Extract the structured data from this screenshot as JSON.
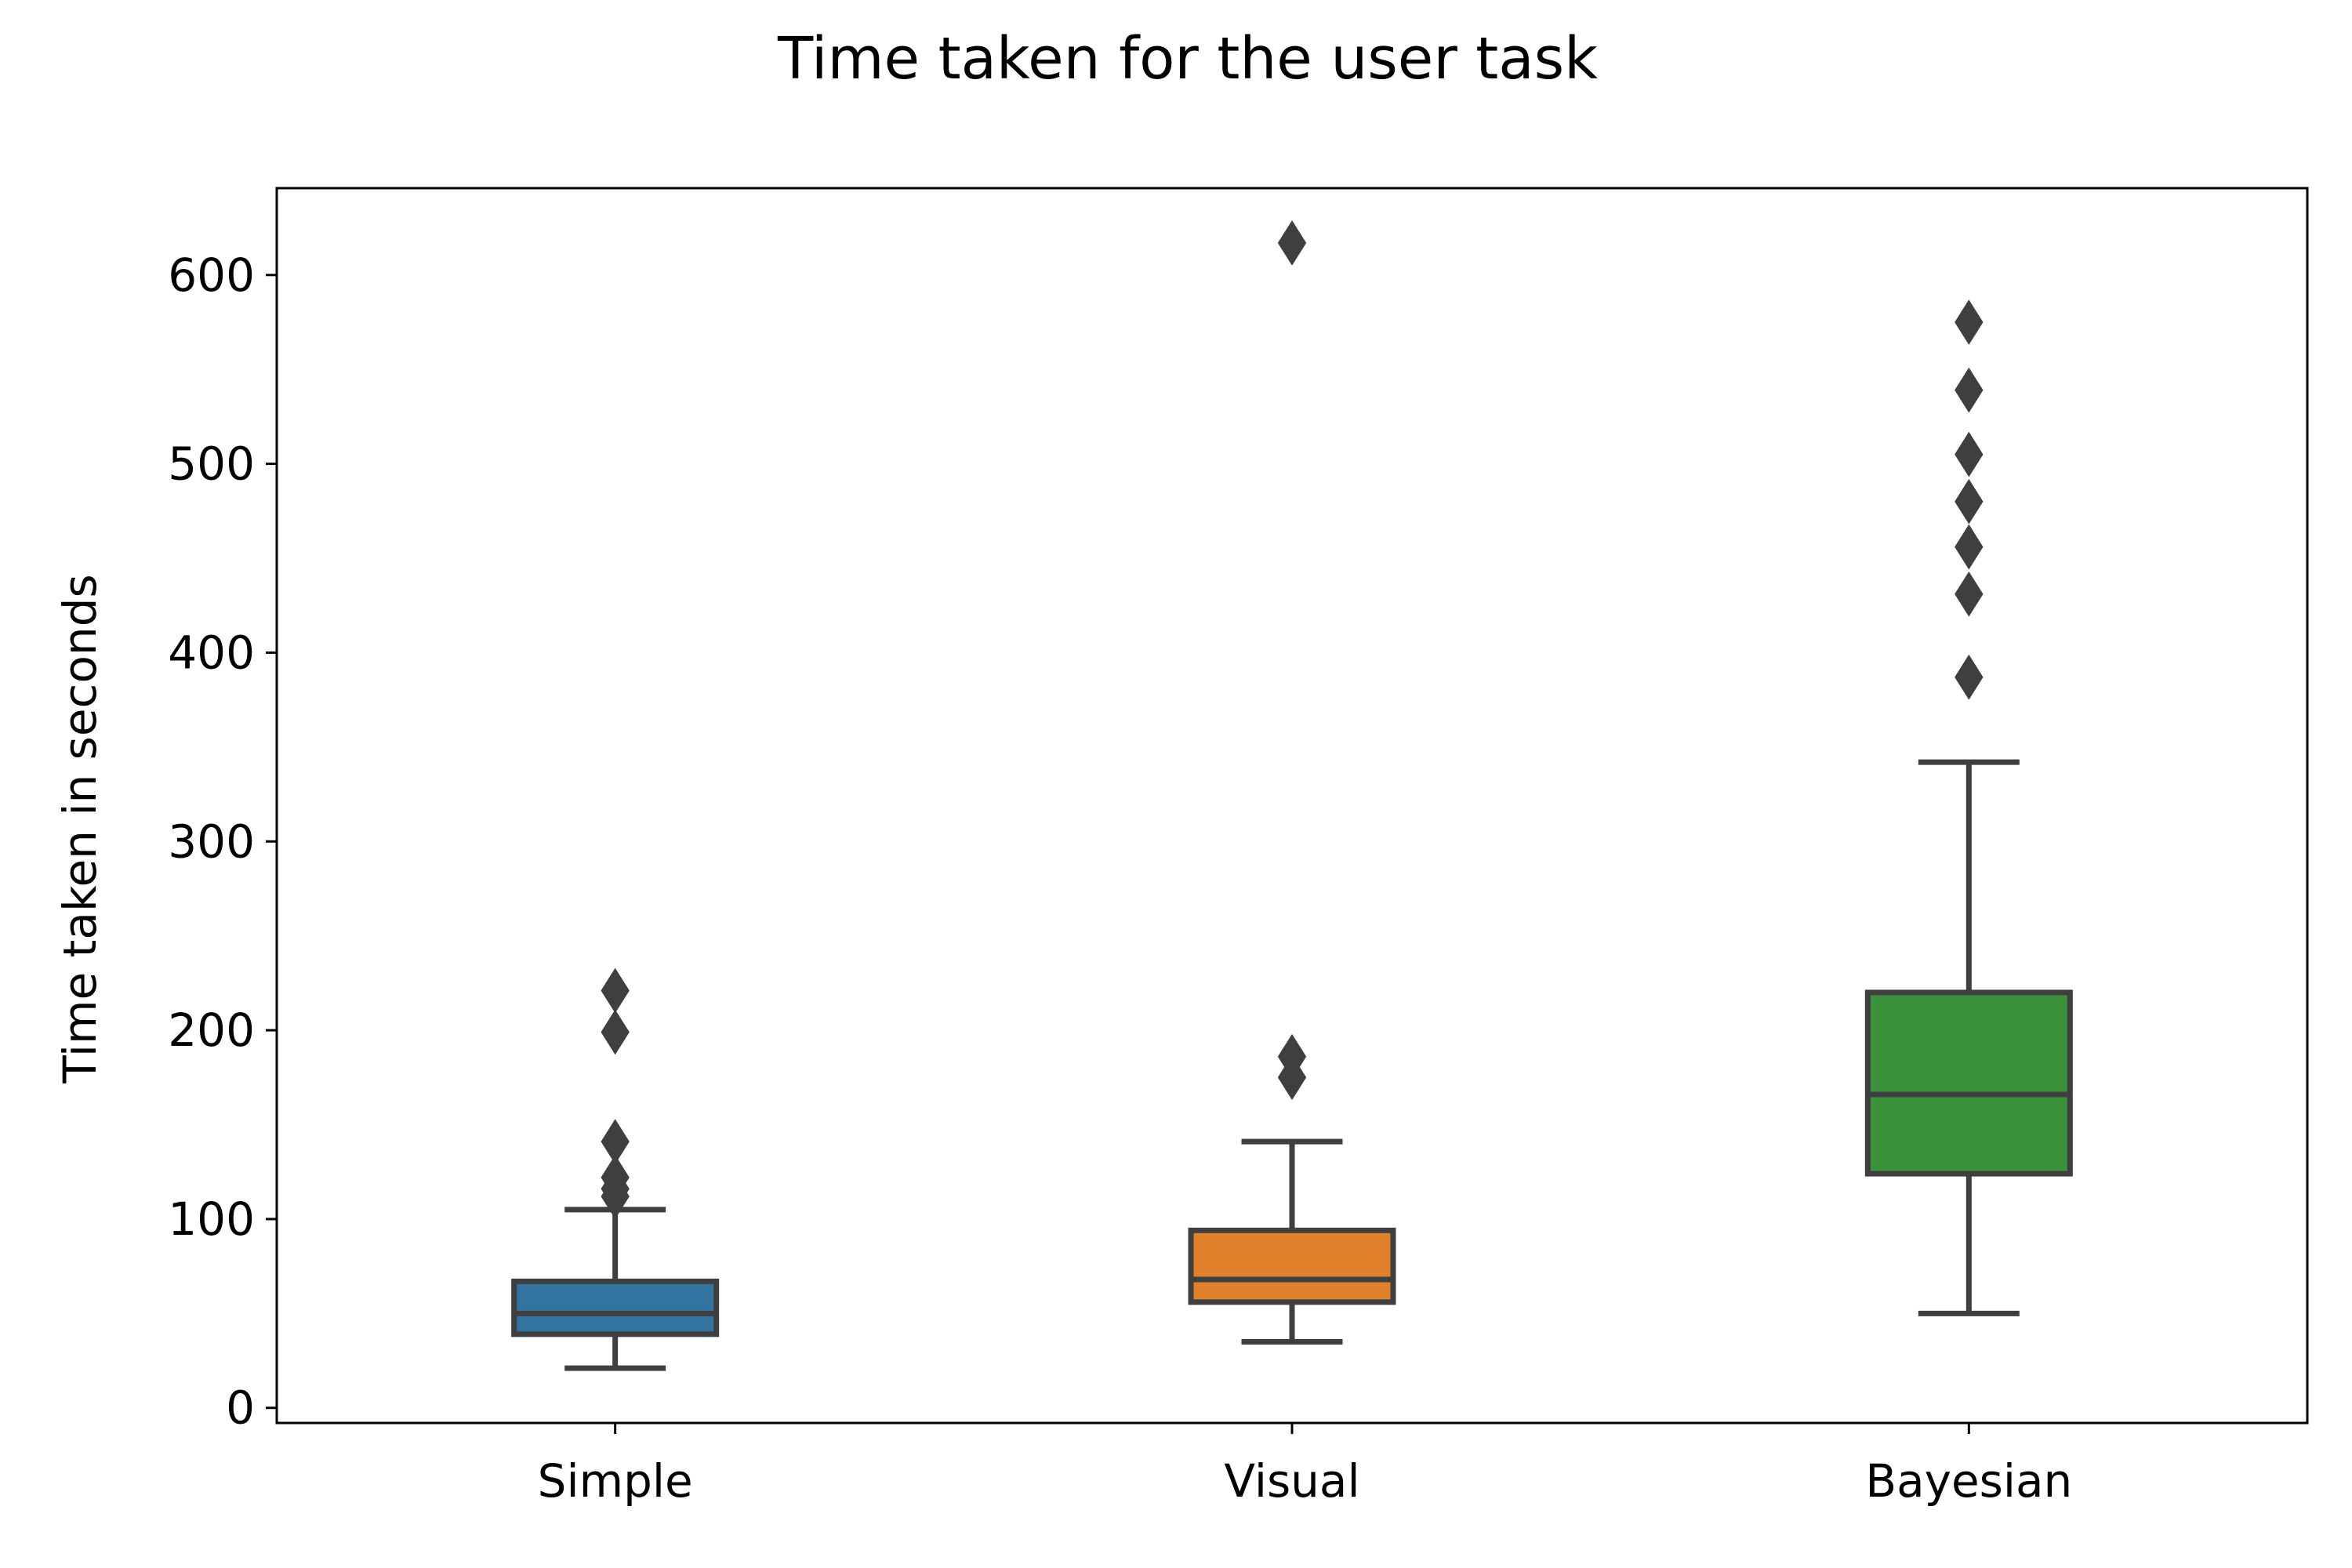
{
  "chart_data": {
    "type": "boxplot",
    "title": "Time taken for the user task",
    "xlabel": "",
    "ylabel": "Time taken in seconds",
    "ylim": [
      -8,
      646
    ],
    "yticks": [
      0,
      100,
      200,
      300,
      400,
      500,
      600
    ],
    "grid": false,
    "legend": "none",
    "categories": [
      "Simple",
      "Visual",
      "Bayesian"
    ],
    "boxes": [
      {
        "category": "Simple",
        "color": "#3274a1",
        "whisker_low": 21,
        "q1": 39,
        "median": 50,
        "q3": 67,
        "whisker_high": 105,
        "outliers": [
          112,
          116,
          122,
          141,
          199,
          221
        ]
      },
      {
        "category": "Visual",
        "color": "#e1812c",
        "whisker_low": 35,
        "q1": 56,
        "median": 68,
        "q3": 94,
        "whisker_high": 141,
        "outliers": [
          175,
          186,
          617
        ]
      },
      {
        "category": "Bayesian",
        "color": "#3a923a",
        "whisker_low": 50,
        "q1": 124,
        "median": 166,
        "q3": 220,
        "whisker_high": 342,
        "outliers": [
          387,
          431,
          456,
          480,
          505,
          539,
          575
        ]
      }
    ]
  }
}
